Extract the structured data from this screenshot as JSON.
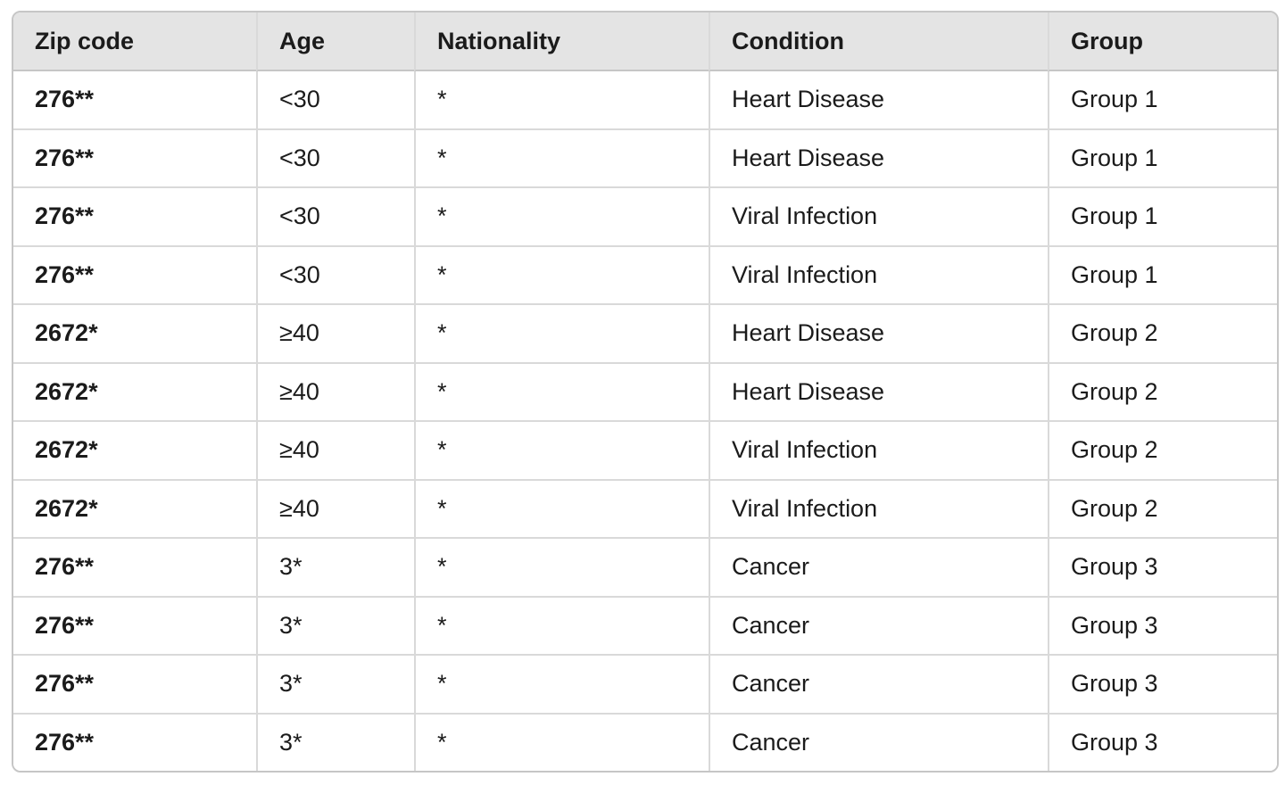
{
  "colors": {
    "header_bg": "#e4e4e4",
    "outer_border": "#c6c6c6",
    "grid_line": "#d9d9d9",
    "text": "#1b1b1b",
    "row_bg": "#ffffff"
  },
  "table": {
    "columns": [
      {
        "id": "zip",
        "label": "Zip code"
      },
      {
        "id": "age",
        "label": "Age"
      },
      {
        "id": "nationality",
        "label": "Nationality"
      },
      {
        "id": "condition",
        "label": "Condition"
      },
      {
        "id": "group",
        "label": "Group"
      }
    ],
    "rows": [
      {
        "zip": "276**",
        "age": "<30",
        "nationality": "*",
        "condition": "Heart Disease",
        "group": "Group 1"
      },
      {
        "zip": "276**",
        "age": "<30",
        "nationality": "*",
        "condition": "Heart Disease",
        "group": "Group 1"
      },
      {
        "zip": "276**",
        "age": "<30",
        "nationality": "*",
        "condition": "Viral Infection",
        "group": "Group 1"
      },
      {
        "zip": "276**",
        "age": "<30",
        "nationality": "*",
        "condition": "Viral Infection",
        "group": "Group 1"
      },
      {
        "zip": "2672*",
        "age": "≥40",
        "nationality": "*",
        "condition": "Heart Disease",
        "group": "Group 2"
      },
      {
        "zip": "2672*",
        "age": "≥40",
        "nationality": "*",
        "condition": "Heart Disease",
        "group": "Group 2"
      },
      {
        "zip": "2672*",
        "age": "≥40",
        "nationality": "*",
        "condition": "Viral Infection",
        "group": "Group 2"
      },
      {
        "zip": "2672*",
        "age": "≥40",
        "nationality": "*",
        "condition": "Viral Infection",
        "group": "Group 2"
      },
      {
        "zip": "276**",
        "age": "3*",
        "nationality": "*",
        "condition": "Cancer",
        "group": "Group 3"
      },
      {
        "zip": "276**",
        "age": "3*",
        "nationality": "*",
        "condition": "Cancer",
        "group": "Group 3"
      },
      {
        "zip": "276**",
        "age": "3*",
        "nationality": "*",
        "condition": "Cancer",
        "group": "Group 3"
      },
      {
        "zip": "276**",
        "age": "3*",
        "nationality": "*",
        "condition": "Cancer",
        "group": "Group 3"
      }
    ]
  }
}
